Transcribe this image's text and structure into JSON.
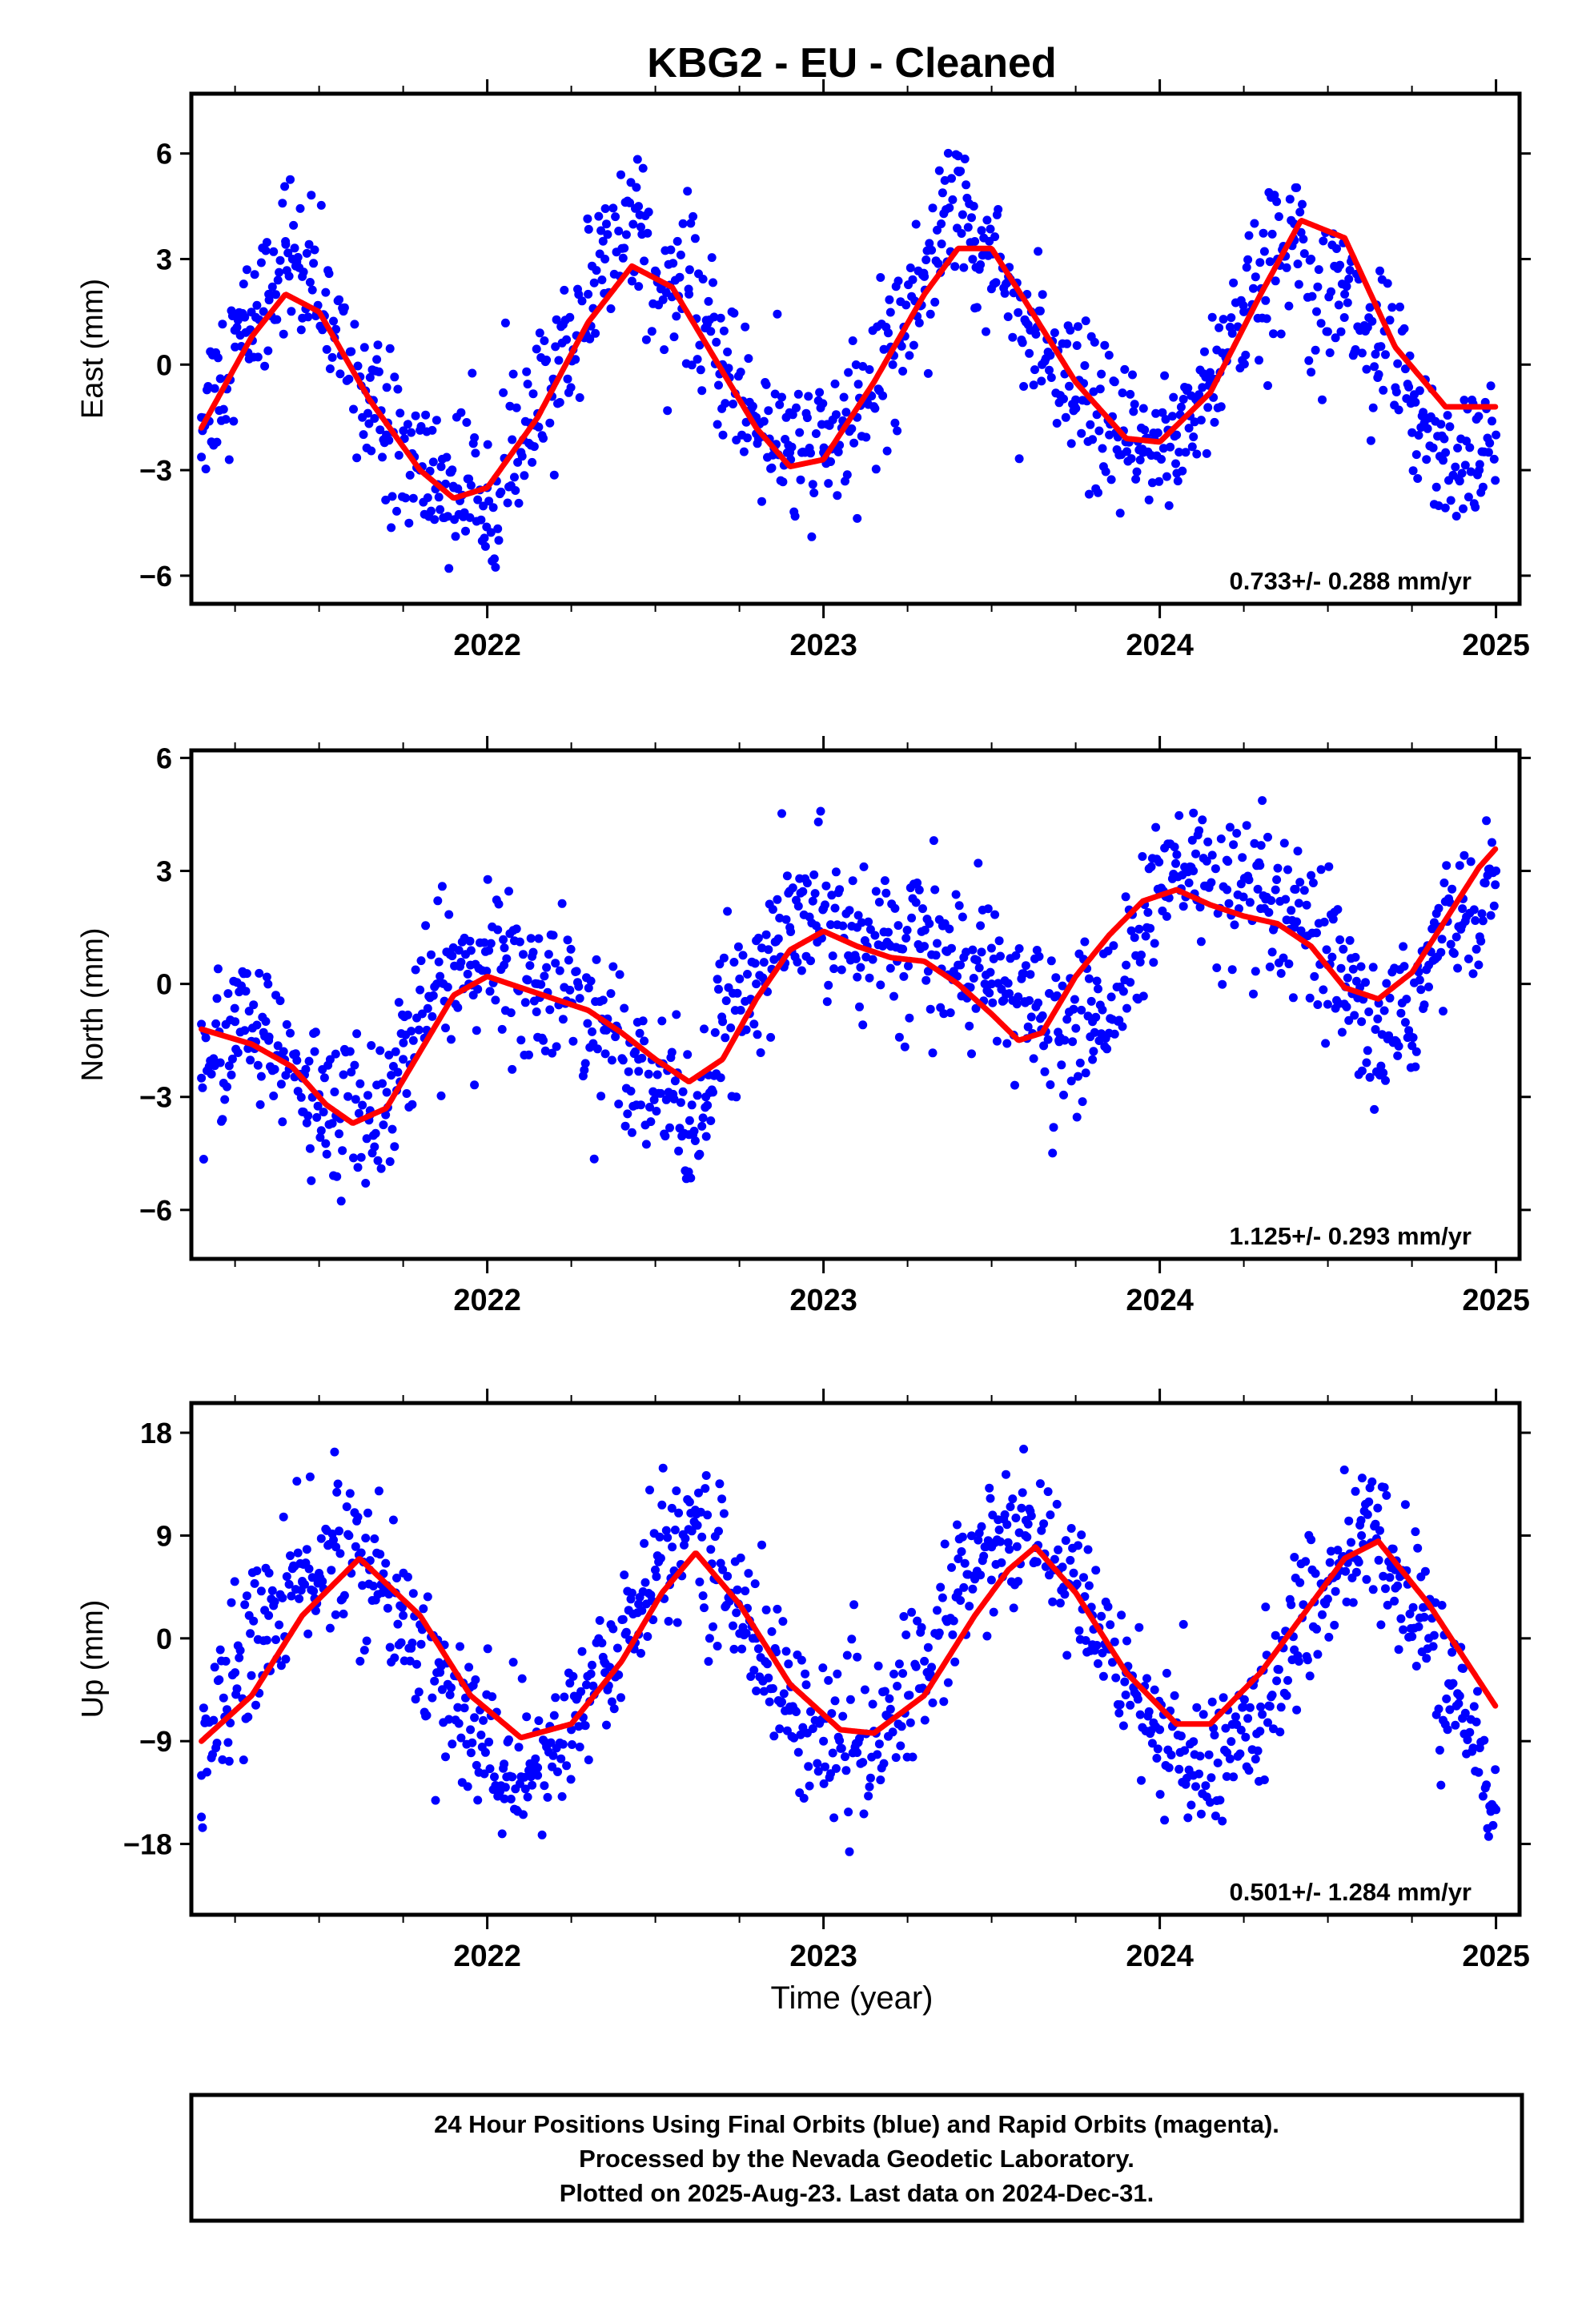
{
  "figure": {
    "title": "KBG2  - EU - Cleaned",
    "xlabel": "Time (year)",
    "footer_lines": [
      "24 Hour Positions Using Final Orbits (blue) and Rapid Orbits (magenta).",
      "Processed by the Nevada Geodetic Laboratory.",
      "Plotted on 2025-Aug-23. Last data on 2024-Dec-31."
    ]
  },
  "colors": {
    "points": "#0000ff",
    "model": "#ff0000",
    "frame": "#000000"
  },
  "chart_data": [
    {
      "type": "scatter",
      "component": "east",
      "ylabel": "East (mm)",
      "rate_text": "0.733+/- 0.288 mm/yr",
      "xlim": [
        2021.12,
        2025.07
      ],
      "ylim": [
        -6.8,
        7.7
      ],
      "x_ticks": [
        2022,
        2023,
        2024,
        2025
      ],
      "x_tick_labels": [
        "2022",
        "2023",
        "2024",
        "2025"
      ],
      "y_ticks": [
        -6,
        -3,
        0,
        3,
        6
      ],
      "y_tick_labels": [
        "−6",
        "−3",
        "0",
        "3",
        "6"
      ],
      "series": [
        {
          "kind": "scatter",
          "x": [
            2021.15,
            2021.25,
            2021.35,
            2021.4,
            2021.45,
            2021.55,
            2021.65,
            2021.7,
            2021.8,
            2021.9,
            2022.0,
            2022.1,
            2022.2,
            2022.3,
            2022.35,
            2022.45,
            2022.5,
            2022.6,
            2022.7,
            2022.8,
            2022.9,
            2023.0,
            2023.1,
            2023.2,
            2023.3,
            2023.35,
            2023.4,
            2023.45,
            2023.55,
            2023.65,
            2023.75,
            2023.85,
            2023.95,
            2024.05,
            2024.15,
            2024.25,
            2024.35,
            2024.4,
            2024.45,
            2024.55,
            2024.65,
            2024.75,
            2024.85,
            2024.95,
            2025.0
          ],
          "y": [
            -1.5,
            0.5,
            2.0,
            3.5,
            2.5,
            1.0,
            -1.0,
            -2.0,
            -3.0,
            -3.5,
            -3.5,
            -2.5,
            -0.5,
            2.0,
            3.0,
            4.5,
            2.5,
            2.0,
            0.0,
            -1.5,
            -2.5,
            -2.5,
            -1.5,
            0.5,
            2.5,
            4.0,
            5.5,
            3.5,
            2.5,
            0.0,
            -1.0,
            -2.0,
            -2.5,
            -2.0,
            -0.5,
            1.5,
            3.0,
            4.0,
            3.0,
            2.0,
            0.5,
            -1.0,
            -2.5,
            -3.0,
            -2.0
          ]
        },
        {
          "kind": "model",
          "x": [
            2021.15,
            2021.3,
            2021.4,
            2021.5,
            2021.65,
            2021.8,
            2021.9,
            2022.0,
            2022.15,
            2022.3,
            2022.43,
            2022.55,
            2022.7,
            2022.8,
            2022.9,
            2023.0,
            2023.15,
            2023.3,
            2023.4,
            2023.5,
            2023.6,
            2023.75,
            2023.9,
            2024.0,
            2024.15,
            2024.3,
            2024.42,
            2024.55,
            2024.7,
            2024.85,
            2025.0
          ],
          "y": [
            -1.8,
            0.8,
            2.0,
            1.5,
            -1.0,
            -3.0,
            -3.8,
            -3.5,
            -1.5,
            1.2,
            2.8,
            2.2,
            -0.2,
            -1.8,
            -2.9,
            -2.7,
            -0.5,
            2.0,
            3.3,
            3.3,
            1.8,
            -0.5,
            -2.1,
            -2.2,
            -0.8,
            2.0,
            4.1,
            3.6,
            0.5,
            -1.2,
            -1.2
          ]
        }
      ]
    },
    {
      "type": "scatter",
      "component": "north",
      "ylabel": "North (mm)",
      "rate_text": "1.125+/- 0.293 mm/yr",
      "xlim": [
        2021.12,
        2025.07
      ],
      "ylim": [
        -7.3,
        6.2
      ],
      "x_ticks": [
        2022,
        2023,
        2024,
        2025
      ],
      "x_tick_labels": [
        "2022",
        "2023",
        "2024",
        "2025"
      ],
      "y_ticks": [
        -6,
        -3,
        0,
        3,
        6
      ],
      "y_tick_labels": [
        "−6",
        "−3",
        "0",
        "3",
        "6"
      ],
      "series": [
        {
          "kind": "scatter",
          "x": [
            2021.15,
            2021.25,
            2021.35,
            2021.45,
            2021.55,
            2021.65,
            2021.75,
            2021.85,
            2021.95,
            2022.05,
            2022.15,
            2022.25,
            2022.35,
            2022.45,
            2022.55,
            2022.6,
            2022.65,
            2022.7,
            2022.8,
            2022.9,
            2023.0,
            2023.1,
            2023.2,
            2023.3,
            2023.4,
            2023.5,
            2023.6,
            2023.7,
            2023.8,
            2023.9,
            2024.0,
            2024.1,
            2024.2,
            2024.3,
            2024.4,
            2024.5,
            2024.6,
            2024.7,
            2024.8,
            2024.9,
            2025.0
          ],
          "y": [
            -2.5,
            -1.0,
            -1.5,
            -2.5,
            -3.5,
            -3.5,
            -2.0,
            0.0,
            0.5,
            0.5,
            0.0,
            -0.5,
            -1.0,
            -2.0,
            -3.0,
            -4.0,
            -3.0,
            -1.0,
            0.0,
            1.5,
            2.0,
            1.5,
            1.0,
            1.0,
            0.5,
            0.0,
            -0.5,
            -1.5,
            -1.0,
            0.5,
            2.5,
            3.0,
            2.5,
            2.0,
            1.5,
            0.5,
            -1.0,
            -1.5,
            0.5,
            2.0,
            3.0
          ]
        },
        {
          "kind": "model",
          "x": [
            2021.15,
            2021.3,
            2021.42,
            2021.52,
            2021.6,
            2021.7,
            2021.8,
            2021.9,
            2022.0,
            2022.1,
            2022.2,
            2022.3,
            2022.4,
            2022.5,
            2022.6,
            2022.7,
            2022.8,
            2022.9,
            2023.0,
            2023.1,
            2023.2,
            2023.3,
            2023.4,
            2023.5,
            2023.58,
            2023.65,
            2023.75,
            2023.85,
            2023.95,
            2024.05,
            2024.15,
            2024.25,
            2024.35,
            2024.45,
            2024.55,
            2024.65,
            2024.75,
            2024.85,
            2024.95,
            2025.0
          ],
          "y": [
            -1.2,
            -1.6,
            -2.2,
            -3.2,
            -3.7,
            -3.3,
            -1.8,
            -0.3,
            0.2,
            -0.1,
            -0.4,
            -0.7,
            -1.3,
            -2.0,
            -2.6,
            -2.0,
            -0.4,
            0.9,
            1.4,
            1.0,
            0.7,
            0.6,
            0.0,
            -0.8,
            -1.5,
            -1.3,
            0.2,
            1.3,
            2.2,
            2.5,
            2.1,
            1.8,
            1.6,
            1.0,
            -0.1,
            -0.4,
            0.3,
            1.7,
            3.1,
            3.6
          ]
        }
      ]
    },
    {
      "type": "scatter",
      "component": "up",
      "ylabel": "Up (mm)",
      "rate_text": "0.501+/- 1.284 mm/yr",
      "xlim": [
        2021.12,
        2025.07
      ],
      "ylim": [
        -24.2,
        20.6
      ],
      "x_ticks": [
        2022,
        2023,
        2024,
        2025
      ],
      "x_tick_labels": [
        "2022",
        "2023",
        "2024",
        "2025"
      ],
      "y_ticks": [
        -18,
        -9,
        0,
        9,
        18
      ],
      "y_tick_labels": [
        "−18",
        "−9",
        "0",
        "9",
        "18"
      ],
      "series": [
        {
          "kind": "scatter",
          "x": [
            2021.15,
            2021.25,
            2021.35,
            2021.45,
            2021.55,
            2021.65,
            2021.75,
            2021.85,
            2021.95,
            2022.05,
            2022.15,
            2022.25,
            2022.35,
            2022.45,
            2022.55,
            2022.62,
            2022.7,
            2022.8,
            2022.9,
            2023.0,
            2023.1,
            2023.2,
            2023.3,
            2023.4,
            2023.5,
            2023.6,
            2023.7,
            2023.8,
            2023.9,
            2024.0,
            2024.1,
            2024.2,
            2024.3,
            2024.4,
            2024.5,
            2024.6,
            2024.7,
            2024.8,
            2024.9,
            2025.0
          ],
          "y": [
            -12,
            -3,
            2,
            5,
            8,
            6,
            2,
            -3,
            -8,
            -11,
            -12,
            -8,
            -3,
            3,
            8,
            10,
            6,
            0,
            -6,
            -9,
            -10,
            -7,
            -2,
            4,
            8,
            9,
            6,
            2,
            -3,
            -8,
            -12,
            -10,
            -6,
            -1,
            5,
            9,
            6,
            0,
            -7,
            -15
          ]
        },
        {
          "kind": "model",
          "x": [
            2021.15,
            2021.3,
            2021.45,
            2021.62,
            2021.8,
            2021.95,
            2022.1,
            2022.25,
            2022.4,
            2022.52,
            2022.62,
            2022.75,
            2022.9,
            2023.05,
            2023.15,
            2023.3,
            2023.45,
            2023.55,
            2023.63,
            2023.75,
            2023.9,
            2024.05,
            2024.15,
            2024.3,
            2024.45,
            2024.55,
            2024.65,
            2024.8,
            2025.0
          ],
          "y": [
            -9,
            -5,
            2,
            7,
            2,
            -5,
            -8.7,
            -7.5,
            -2,
            4,
            7.5,
            3,
            -4,
            -8,
            -8.3,
            -5,
            2,
            6,
            8,
            4,
            -3,
            -7.5,
            -7.5,
            -3,
            3,
            7,
            8.5,
            3,
            -6
          ]
        }
      ]
    }
  ]
}
